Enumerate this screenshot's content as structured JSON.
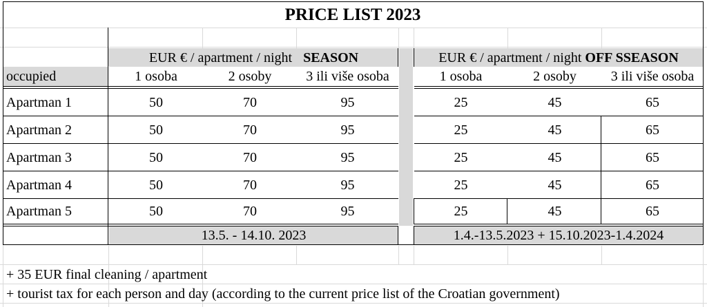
{
  "title": "PRICE LIST 2023",
  "season": {
    "unit": "EUR € / apartment / night",
    "name": "SEASON",
    "dates": "13.5. - 14.10. 2023"
  },
  "off_season": {
    "unit": "EUR € / apartment / night",
    "name": "OFF SSEASON",
    "dates": "1.4.-13.5.2023 + 15.10.2023-1.4.2024"
  },
  "occupied_label": "occupied",
  "columns": [
    "1 osoba",
    "2 osoby",
    "3 ili više osoba"
  ],
  "rows": [
    {
      "name": "Apartman 1",
      "season": [
        "50",
        "70",
        "95"
      ],
      "off": [
        "25",
        "45",
        "65"
      ]
    },
    {
      "name": "Apartman 2",
      "season": [
        "50",
        "70",
        "95"
      ],
      "off": [
        "25",
        "45",
        "65"
      ]
    },
    {
      "name": "Apartman 3",
      "season": [
        "50",
        "70",
        "95"
      ],
      "off": [
        "25",
        "45",
        "65"
      ]
    },
    {
      "name": "Apartman 4",
      "season": [
        "50",
        "70",
        "95"
      ],
      "off": [
        "25",
        "45",
        "65"
      ]
    },
    {
      "name": "Apartman 5",
      "season": [
        "50",
        "70",
        "95"
      ],
      "off": [
        "25",
        "45",
        "65"
      ]
    }
  ],
  "notes": [
    "+ 35 EUR  final cleaning / apartment",
    "+ tourist tax for each person and day (according to the current price list of the Croatian government)"
  ]
}
